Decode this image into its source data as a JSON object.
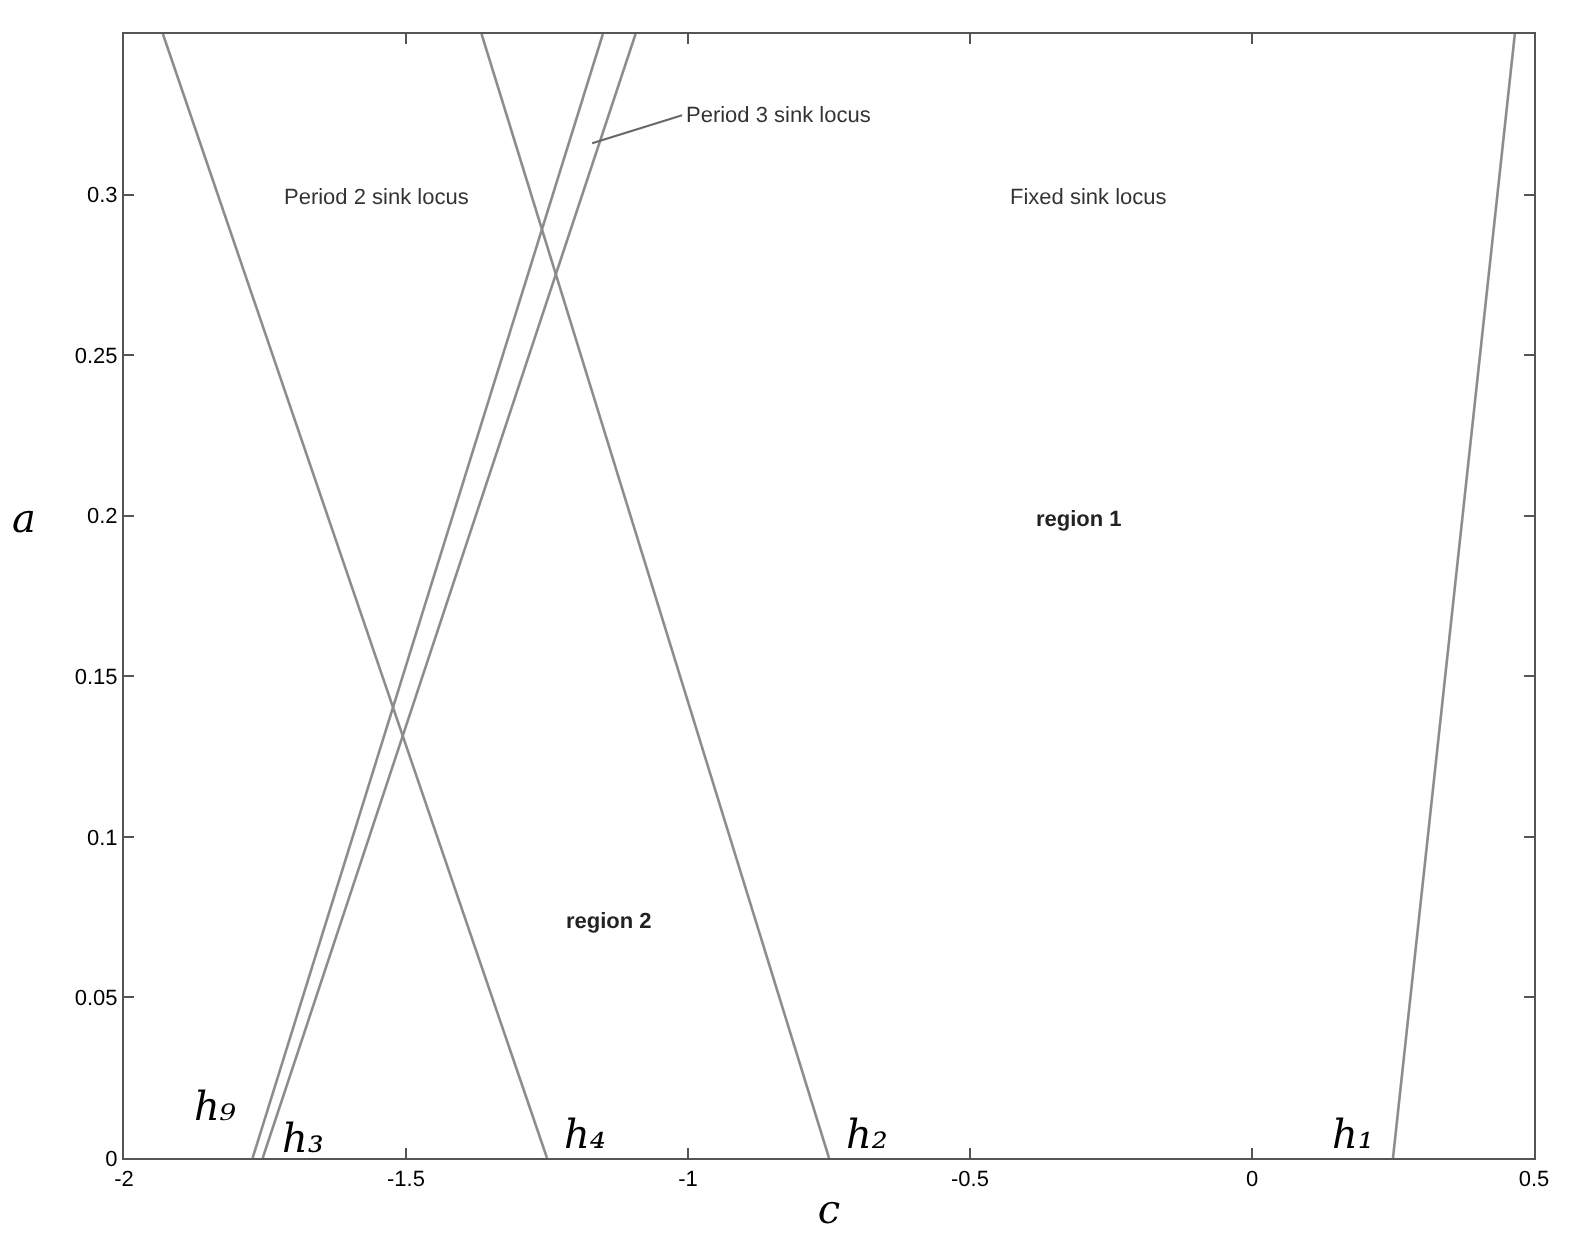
{
  "chart_data": {
    "type": "line",
    "xlabel": "c",
    "ylabel": "a",
    "xlim": [
      -2,
      0.5
    ],
    "ylim": [
      0,
      0.35
    ],
    "xticks": [
      -2,
      -1.5,
      -1,
      -0.5,
      0,
      0.5
    ],
    "yticks": [
      0,
      0.05,
      0.1,
      0.15,
      0.2,
      0.25,
      0.3
    ],
    "legend": false,
    "marker": "none",
    "line_style": "solid",
    "series": [
      {
        "name": "h₁",
        "color": "#8c8c8c",
        "x": [
          0.25,
          0.466
        ],
        "values": [
          0,
          0.35
        ]
      },
      {
        "name": "h₂",
        "color": "#8c8c8c",
        "x": [
          -0.75,
          -1.366
        ],
        "values": [
          0,
          0.35
        ]
      },
      {
        "name": "h₃",
        "color": "#8c8c8c",
        "x": [
          -1.754,
          -1.093
        ],
        "values": [
          0,
          0.35
        ]
      },
      {
        "name": "h₄",
        "color": "#8c8c8c",
        "x": [
          -1.25,
          -1.931
        ],
        "values": [
          0,
          0.35
        ]
      },
      {
        "name": "h₉",
        "color": "#8c8c8c",
        "x": [
          -1.772,
          -1.151
        ],
        "values": [
          0,
          0.35
        ]
      }
    ],
    "annotations": [
      {
        "text": "Period 3 sink locus",
        "x": -1.17,
        "y": 0.316
      },
      "Period 2 sink locus",
      "Fixed sink locus",
      "region 1",
      "region 2"
    ]
  }
}
